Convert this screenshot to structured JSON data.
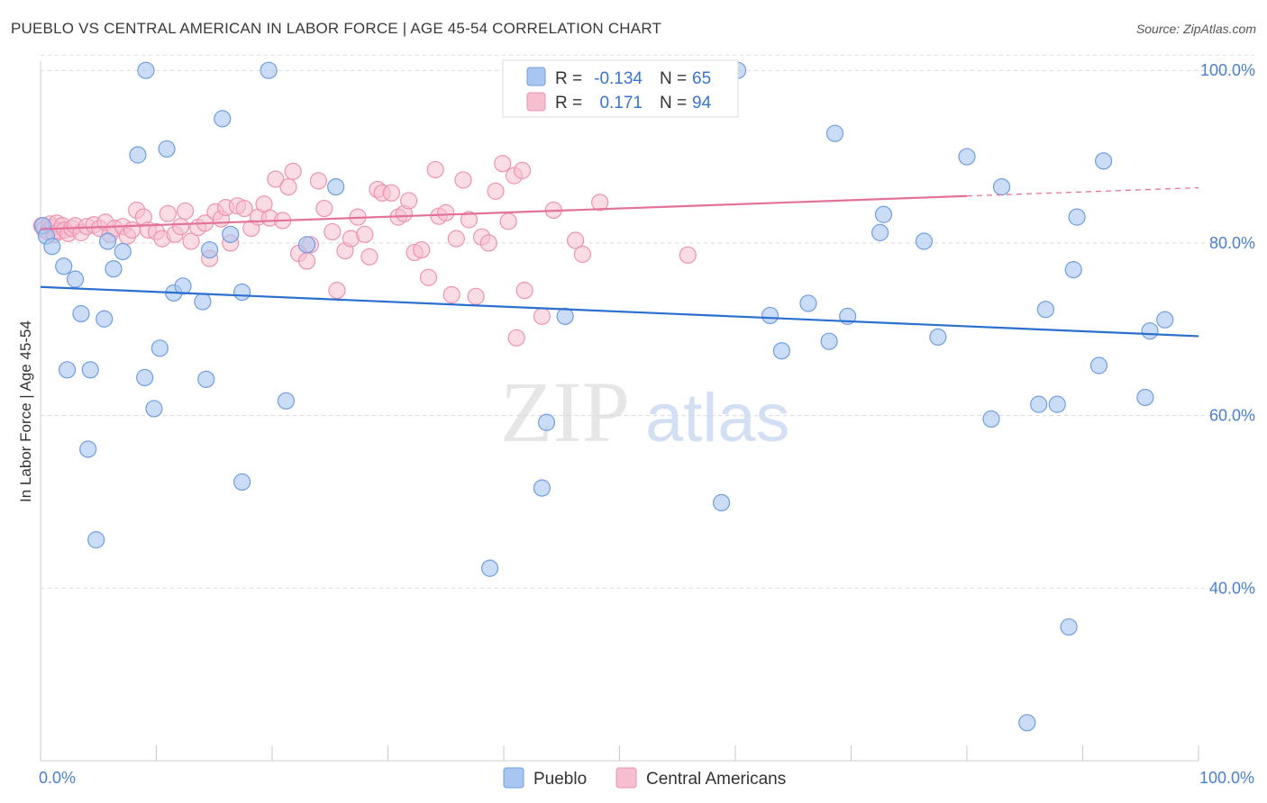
{
  "header": {
    "title": "PUEBLO VS CENTRAL AMERICAN IN LABOR FORCE | AGE 45-54 CORRELATION CHART",
    "source": "Source: ZipAtlas.com"
  },
  "watermark": {
    "zip": "ZIP",
    "atlas": "atlas"
  },
  "legend": {
    "rows": [
      {
        "r_label": "R =",
        "r_value": "-0.134",
        "n_label": "N =",
        "n_value": "65"
      },
      {
        "r_label": "R =",
        "r_value": "0.171",
        "n_label": "N =",
        "n_value": "94"
      }
    ]
  },
  "bottom_legend": {
    "pueblo": "Pueblo",
    "central": "Central Americans"
  },
  "axis_text": {
    "ylabel": "In Labor Force | Age 45-54",
    "x_min": "0.0%",
    "x_max": "100.0%"
  },
  "colors": {
    "pueblo_fill": "#a9c6f0",
    "pueblo_stroke": "#6f9de0",
    "pueblo_line": "#2b6fcf",
    "central_fill": "#f6bfd0",
    "central_stroke": "#ee93b0",
    "central_line": "#e2729a",
    "grid": "#d9d9d9",
    "tick_text": "#4a7fd0"
  },
  "chart_data": {
    "type": "scatter",
    "xlabel": "",
    "ylabel": "In Labor Force | Age 45-54",
    "xlim": [
      0,
      100
    ],
    "ylim": [
      20,
      102
    ],
    "yticks": [
      {
        "value": 100,
        "label": "100.0%"
      },
      {
        "value": 80,
        "label": "80.0%"
      },
      {
        "value": 60,
        "label": "60.0%"
      },
      {
        "value": 40,
        "label": "40.0%"
      }
    ],
    "xtick_labels": [
      "0.0%",
      "100.0%"
    ],
    "grid": true,
    "series": [
      {
        "name": "Pueblo",
        "r": -0.134,
        "n": 65,
        "trend": {
          "x0": 0,
          "y0": 74.9,
          "x1": 100,
          "y1": 69.2,
          "dash_from": 100
        },
        "points": [
          [
            0.2,
            82.0
          ],
          [
            0.5,
            80.8
          ],
          [
            1.0,
            79.6
          ],
          [
            2.0,
            77.3
          ],
          [
            3.0,
            75.8
          ],
          [
            2.3,
            65.3
          ],
          [
            4.1,
            56.1
          ],
          [
            3.5,
            71.8
          ],
          [
            4.3,
            65.3
          ],
          [
            4.8,
            45.6
          ],
          [
            5.5,
            71.2
          ],
          [
            5.8,
            80.2
          ],
          [
            6.3,
            77.0
          ],
          [
            7.1,
            79.0
          ],
          [
            8.4,
            90.2
          ],
          [
            9.0,
            64.4
          ],
          [
            9.1,
            100.0
          ],
          [
            9.8,
            60.8
          ],
          [
            10.3,
            67.8
          ],
          [
            10.9,
            90.9
          ],
          [
            11.5,
            74.2
          ],
          [
            12.3,
            75.0
          ],
          [
            14.0,
            73.2
          ],
          [
            14.3,
            64.2
          ],
          [
            14.6,
            79.2
          ],
          [
            15.7,
            94.4
          ],
          [
            16.4,
            81.0
          ],
          [
            17.4,
            74.3
          ],
          [
            17.4,
            52.3
          ],
          [
            19.7,
            100.0
          ],
          [
            21.2,
            61.7
          ],
          [
            23.0,
            79.8
          ],
          [
            25.5,
            86.5
          ],
          [
            38.8,
            42.3
          ],
          [
            43.7,
            59.2
          ],
          [
            43.3,
            51.6
          ],
          [
            45.3,
            71.5
          ],
          [
            46.2,
            100.0
          ],
          [
            60.2,
            100.0
          ],
          [
            58.8,
            49.9
          ],
          [
            63.0,
            71.6
          ],
          [
            64.0,
            67.5
          ],
          [
            66.3,
            73.0
          ],
          [
            68.1,
            68.6
          ],
          [
            68.6,
            92.7
          ],
          [
            69.7,
            71.5
          ],
          [
            72.5,
            81.2
          ],
          [
            72.8,
            83.3
          ],
          [
            76.3,
            80.2
          ],
          [
            77.5,
            69.1
          ],
          [
            80.0,
            90.0
          ],
          [
            82.1,
            59.6
          ],
          [
            83.0,
            86.5
          ],
          [
            85.2,
            24.4
          ],
          [
            86.2,
            61.3
          ],
          [
            86.8,
            72.3
          ],
          [
            87.8,
            61.3
          ],
          [
            88.8,
            35.5
          ],
          [
            89.2,
            76.9
          ],
          [
            89.5,
            83.0
          ],
          [
            91.4,
            65.8
          ],
          [
            91.8,
            89.5
          ],
          [
            95.4,
            62.1
          ],
          [
            95.8,
            69.8
          ],
          [
            97.1,
            71.1
          ]
        ]
      },
      {
        "name": "Central Americans",
        "r": 0.171,
        "n": 94,
        "trend": {
          "x0": 0,
          "y0": 81.6,
          "x1": 100,
          "y1": 86.4,
          "dash_from": 80
        },
        "points": [
          [
            0.1,
            82.0
          ],
          [
            0.3,
            81.6
          ],
          [
            0.6,
            81.3
          ],
          [
            0.8,
            82.2
          ],
          [
            1.0,
            81.8
          ],
          [
            1.2,
            81.0
          ],
          [
            1.4,
            82.3
          ],
          [
            1.6,
            81.4
          ],
          [
            1.9,
            82.0
          ],
          [
            2.1,
            81.5
          ],
          [
            2.4,
            81.1
          ],
          [
            2.7,
            81.7
          ],
          [
            3.0,
            82.0
          ],
          [
            3.5,
            81.2
          ],
          [
            4.0,
            81.9
          ],
          [
            4.6,
            82.1
          ],
          [
            5.1,
            81.7
          ],
          [
            5.6,
            82.4
          ],
          [
            6.0,
            81.0
          ],
          [
            6.4,
            81.7
          ],
          [
            7.1,
            81.9
          ],
          [
            7.5,
            80.8
          ],
          [
            7.9,
            81.5
          ],
          [
            8.3,
            83.8
          ],
          [
            8.9,
            83.0
          ],
          [
            9.3,
            81.5
          ],
          [
            10.0,
            81.3
          ],
          [
            10.5,
            80.5
          ],
          [
            11.0,
            83.4
          ],
          [
            11.6,
            81.0
          ],
          [
            12.1,
            81.9
          ],
          [
            12.5,
            83.7
          ],
          [
            13.0,
            80.2
          ],
          [
            13.6,
            81.8
          ],
          [
            14.2,
            82.3
          ],
          [
            14.6,
            78.2
          ],
          [
            15.1,
            83.6
          ],
          [
            15.6,
            82.8
          ],
          [
            16.0,
            84.1
          ],
          [
            16.4,
            80.0
          ],
          [
            17.0,
            84.3
          ],
          [
            17.6,
            84.0
          ],
          [
            18.2,
            81.7
          ],
          [
            18.8,
            83.0
          ],
          [
            19.3,
            84.5
          ],
          [
            19.8,
            82.9
          ],
          [
            20.3,
            87.4
          ],
          [
            20.9,
            82.6
          ],
          [
            21.4,
            86.5
          ],
          [
            21.8,
            88.3
          ],
          [
            22.3,
            78.8
          ],
          [
            23.0,
            77.9
          ],
          [
            23.3,
            79.8
          ],
          [
            24.0,
            87.2
          ],
          [
            24.5,
            84.0
          ],
          [
            25.2,
            81.3
          ],
          [
            25.6,
            74.5
          ],
          [
            26.3,
            79.1
          ],
          [
            26.8,
            80.5
          ],
          [
            27.4,
            83.0
          ],
          [
            28.0,
            81.0
          ],
          [
            28.4,
            78.4
          ],
          [
            29.1,
            86.2
          ],
          [
            29.5,
            85.8
          ],
          [
            30.3,
            85.8
          ],
          [
            30.9,
            83.0
          ],
          [
            31.4,
            83.4
          ],
          [
            31.8,
            84.9
          ],
          [
            32.3,
            78.9
          ],
          [
            32.9,
            79.2
          ],
          [
            33.5,
            76.0
          ],
          [
            34.1,
            88.5
          ],
          [
            34.4,
            83.1
          ],
          [
            35.0,
            83.5
          ],
          [
            35.5,
            74.0
          ],
          [
            35.9,
            80.5
          ],
          [
            36.5,
            87.3
          ],
          [
            37.0,
            82.7
          ],
          [
            37.6,
            73.8
          ],
          [
            38.1,
            80.7
          ],
          [
            38.7,
            80.0
          ],
          [
            39.3,
            86.0
          ],
          [
            39.9,
            89.2
          ],
          [
            40.4,
            82.5
          ],
          [
            40.9,
            87.8
          ],
          [
            41.6,
            88.4
          ],
          [
            41.1,
            69.0
          ],
          [
            41.8,
            74.5
          ],
          [
            43.3,
            71.5
          ],
          [
            44.3,
            83.8
          ],
          [
            46.2,
            80.3
          ],
          [
            46.8,
            78.7
          ],
          [
            48.3,
            84.7
          ],
          [
            55.9,
            78.6
          ]
        ]
      }
    ]
  }
}
